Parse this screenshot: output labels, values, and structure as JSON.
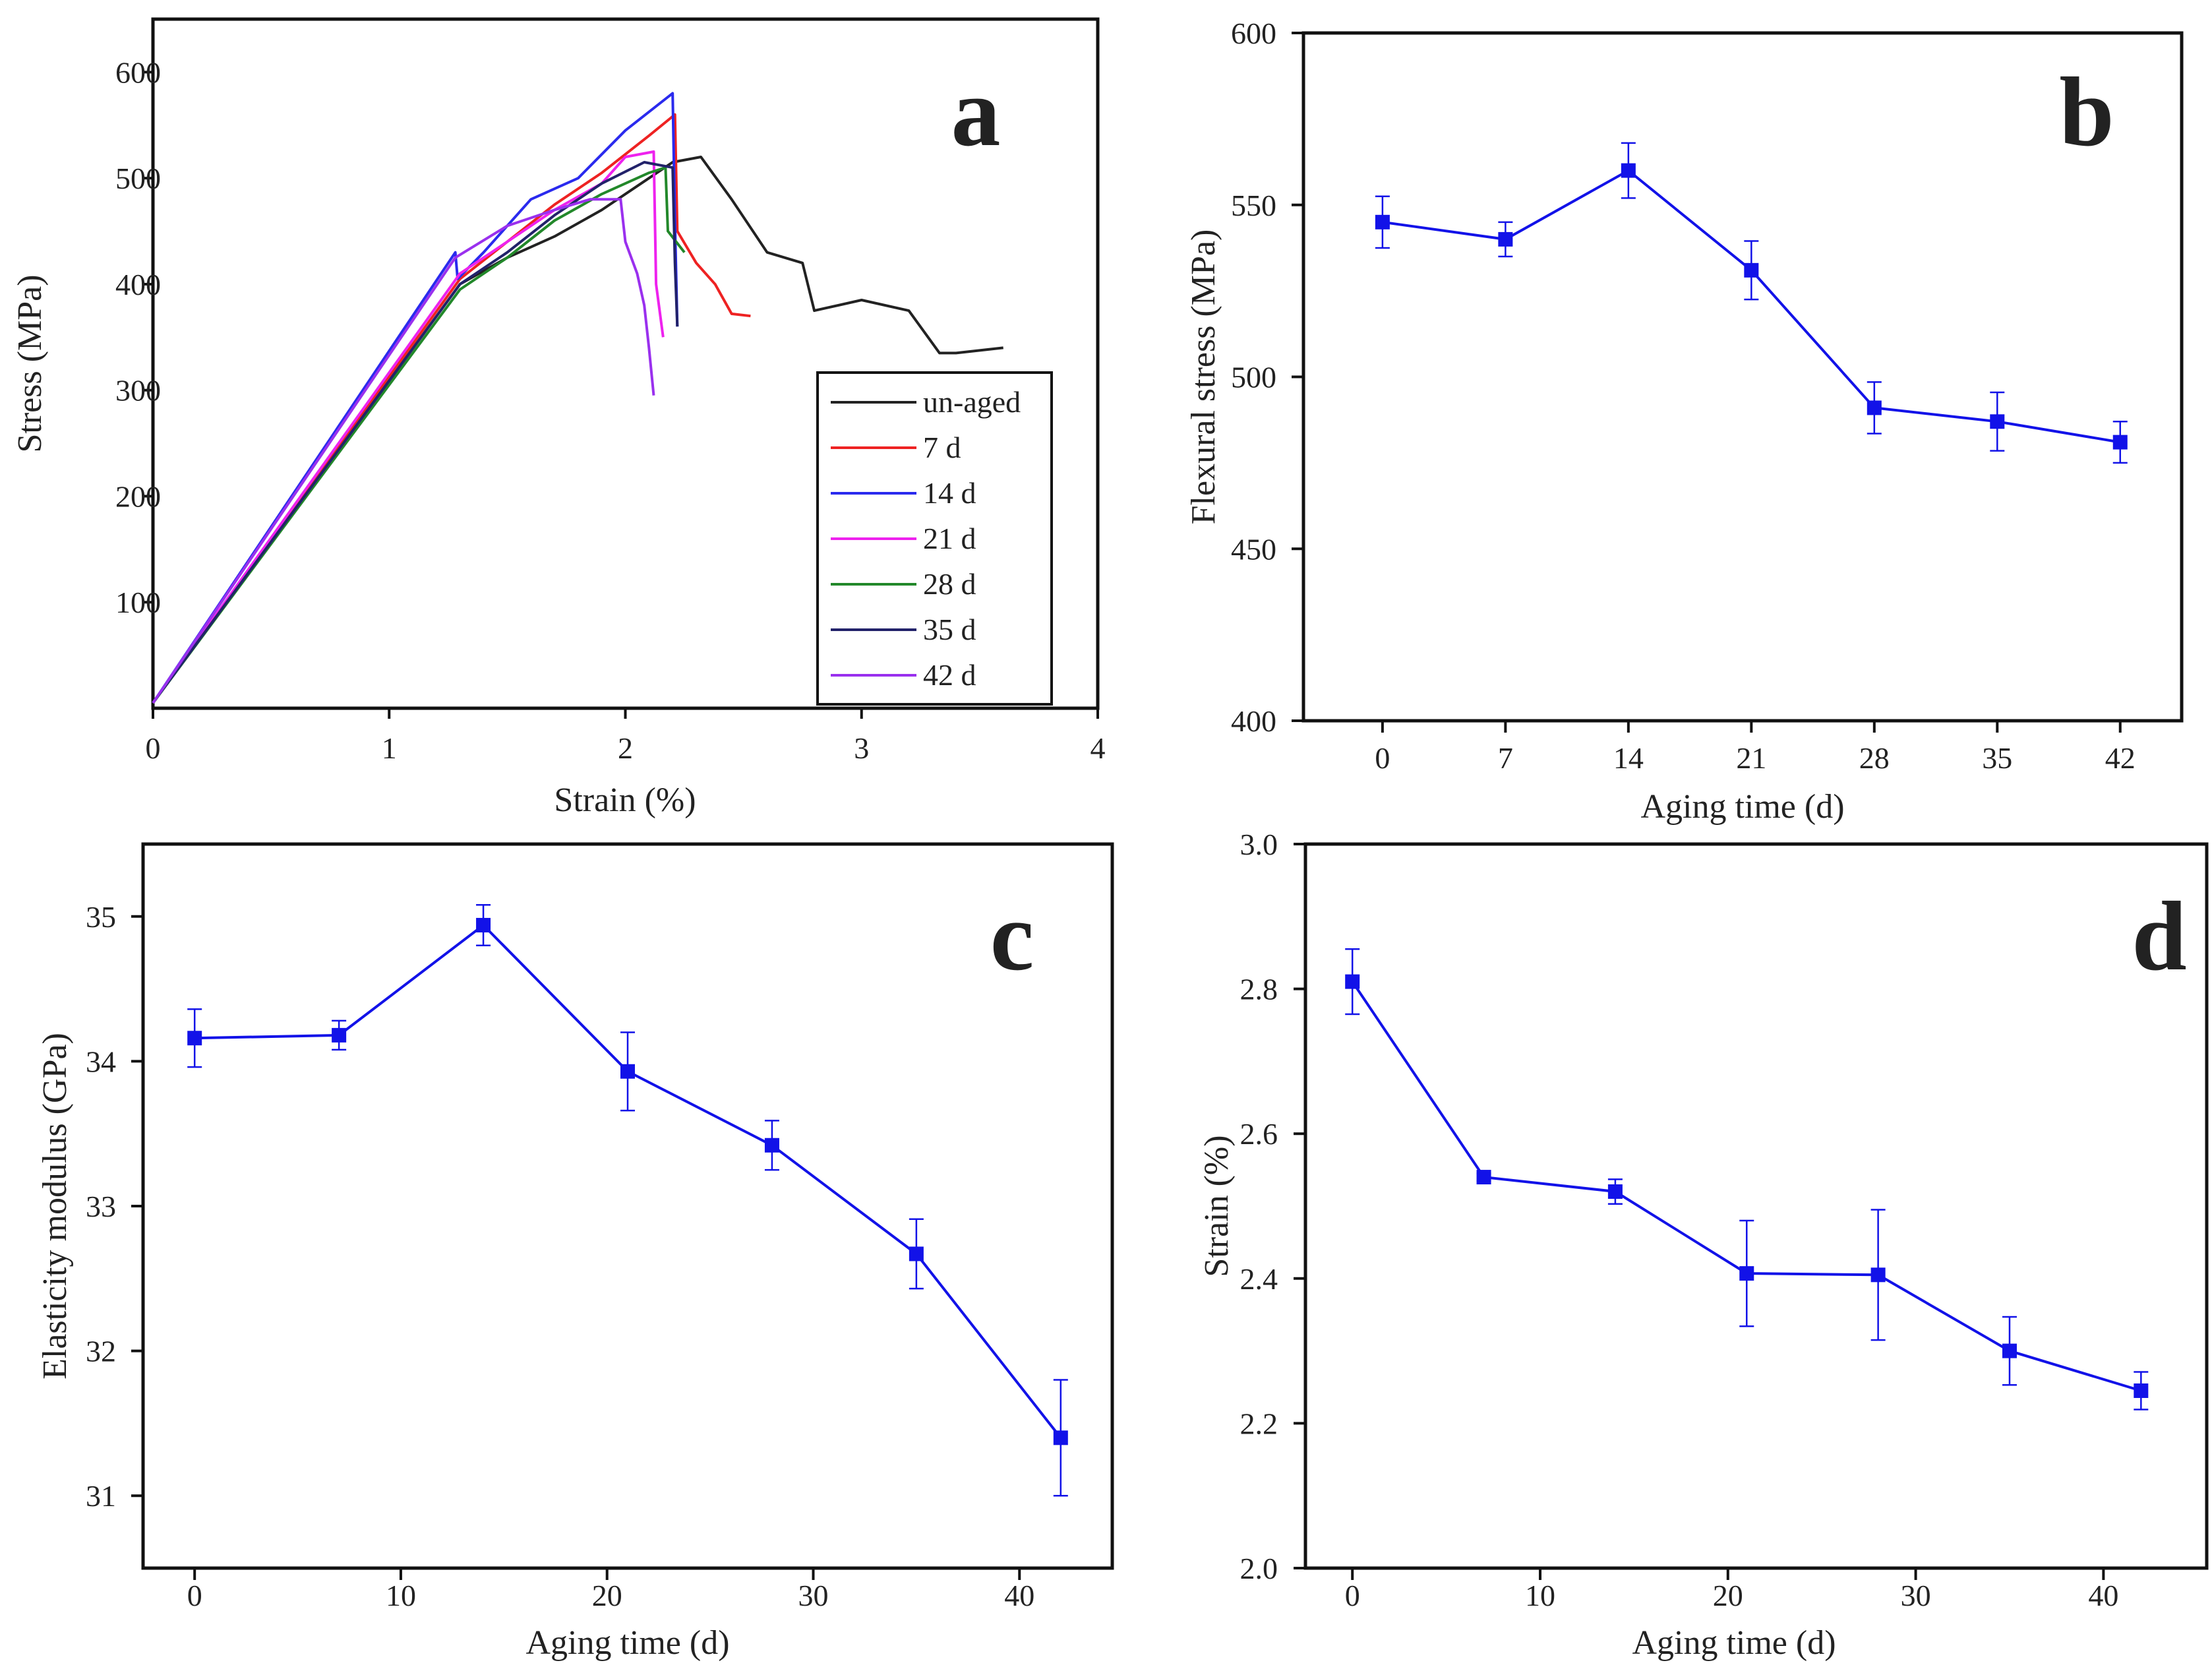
{
  "chart_data": [
    {
      "panel": "a",
      "type": "line",
      "xlabel": "Strain (%)",
      "ylabel": "Stress (MPa)",
      "xlim": [
        0,
        4
      ],
      "ylim": [
        0,
        650
      ],
      "xticks": [
        0,
        1,
        2,
        3,
        4
      ],
      "yticks": [
        100,
        200,
        300,
        400,
        500,
        600
      ],
      "tick_labels_x": [
        "0",
        "1",
        "2",
        "3",
        "4"
      ],
      "tick_labels_y": [
        "100",
        "200",
        "300",
        "400",
        "500",
        "600"
      ],
      "legend_position": "bottom-right",
      "series": [
        {
          "name": "un-aged",
          "color": "#222222",
          "x": [
            0,
            1.3,
            1.5,
            1.7,
            1.9,
            2.1,
            2.2,
            2.32,
            2.45,
            2.6,
            2.75,
            2.8,
            3.0,
            3.2,
            3.33,
            3.4,
            3.6
          ],
          "y": [
            5,
            400,
            425,
            445,
            470,
            500,
            515,
            520,
            480,
            430,
            420,
            375,
            385,
            375,
            335,
            335,
            340
          ]
        },
        {
          "name": "7 d",
          "color": "#ee2222",
          "x": [
            0,
            1.3,
            1.5,
            1.7,
            1.9,
            2.1,
            2.21,
            2.22,
            2.3,
            2.38,
            2.45,
            2.53
          ],
          "y": [
            5,
            405,
            440,
            475,
            505,
            540,
            560,
            450,
            420,
            400,
            372,
            370
          ]
        },
        {
          "name": "14 d",
          "color": "#2a2aee",
          "x": [
            0,
            1.28,
            1.29,
            1.4,
            1.6,
            1.8,
            2.0,
            2.2,
            2.21,
            2.22
          ],
          "y": [
            5,
            430,
            405,
            430,
            480,
            500,
            545,
            580,
            460,
            360
          ]
        },
        {
          "name": "21 d",
          "color": "#ee22ee",
          "x": [
            0,
            1.3,
            1.5,
            1.7,
            1.9,
            2.0,
            2.12,
            2.13,
            2.16
          ],
          "y": [
            5,
            410,
            440,
            470,
            495,
            520,
            525,
            400,
            350
          ]
        },
        {
          "name": "28 d",
          "color": "#22882a",
          "x": [
            0,
            1.3,
            1.5,
            1.7,
            1.9,
            2.1,
            2.17,
            2.18,
            2.25
          ],
          "y": [
            5,
            395,
            425,
            460,
            485,
            505,
            510,
            450,
            430
          ]
        },
        {
          "name": "35 d",
          "color": "#22226a",
          "x": [
            0,
            1.3,
            1.5,
            1.7,
            1.9,
            2.08,
            2.2,
            2.21,
            2.22
          ],
          "y": [
            5,
            400,
            430,
            465,
            495,
            515,
            510,
            420,
            360
          ]
        },
        {
          "name": "42 d",
          "color": "#9a30ee",
          "x": [
            0,
            1.28,
            1.5,
            1.7,
            1.85,
            1.98,
            2.0,
            2.05,
            2.08,
            2.1,
            2.12
          ],
          "y": [
            5,
            425,
            455,
            470,
            480,
            480,
            440,
            410,
            380,
            340,
            295
          ]
        }
      ]
    },
    {
      "panel": "b",
      "type": "line",
      "xlabel": "Aging time (d)",
      "ylabel": "Flexural stress (MPa)",
      "xlim": [
        -4.5,
        45.5
      ],
      "ylim": [
        400,
        600
      ],
      "xticks": [
        0,
        7,
        14,
        21,
        28,
        35,
        42
      ],
      "yticks": [
        400,
        450,
        500,
        550,
        600
      ],
      "tick_labels_x": [
        "0",
        "7",
        "14",
        "21",
        "28",
        "35",
        "42"
      ],
      "tick_labels_y": [
        "400",
        "450",
        "500",
        "550",
        "600"
      ],
      "x": [
        0,
        7,
        14,
        21,
        28,
        35,
        42
      ],
      "y": [
        545,
        540,
        560,
        531,
        491,
        487,
        481
      ],
      "err": [
        7.5,
        5,
        8,
        8.5,
        7.5,
        8.5,
        6
      ],
      "color": "#1212e8"
    },
    {
      "panel": "c",
      "type": "line",
      "xlabel": "Aging time (d)",
      "ylabel": "Elasticity modulus (GPa)",
      "xlim": [
        -2.5,
        44.5
      ],
      "ylim": [
        30.5,
        35.5
      ],
      "xticks": [
        0,
        10,
        20,
        30,
        40
      ],
      "yticks": [
        31,
        32,
        33,
        34,
        35
      ],
      "tick_labels_x": [
        "0",
        "10",
        "20",
        "30",
        "40"
      ],
      "tick_labels_y": [
        "31",
        "32",
        "33",
        "34",
        "35"
      ],
      "x": [
        0,
        7,
        14,
        21,
        28,
        35,
        42
      ],
      "y": [
        34.16,
        34.18,
        34.94,
        33.93,
        33.42,
        32.67,
        31.4
      ],
      "err": [
        0.2,
        0.1,
        0.14,
        0.27,
        0.17,
        0.24,
        0.4
      ],
      "color": "#1212e8"
    },
    {
      "panel": "d",
      "type": "line",
      "xlabel": "Aging time (d)",
      "ylabel": "Strain (%)",
      "xlim": [
        -2.5,
        45.5
      ],
      "ylim": [
        2.0,
        3.0
      ],
      "xticks": [
        0,
        10,
        20,
        30,
        40
      ],
      "yticks": [
        2.0,
        2.2,
        2.4,
        2.6,
        2.8,
        3.0
      ],
      "tick_labels_x": [
        "0",
        "10",
        "20",
        "30",
        "40"
      ],
      "tick_labels_y": [
        "2.0",
        "2.2",
        "2.4",
        "2.6",
        "2.8",
        "3.0"
      ],
      "x": [
        0,
        7,
        14,
        21,
        28,
        35,
        42
      ],
      "y": [
        2.81,
        2.54,
        2.52,
        2.407,
        2.405,
        2.3,
        2.245
      ],
      "err": [
        0.045,
        0.005,
        0.017,
        0.073,
        0.09,
        0.047,
        0.026
      ],
      "color": "#1212e8"
    }
  ]
}
